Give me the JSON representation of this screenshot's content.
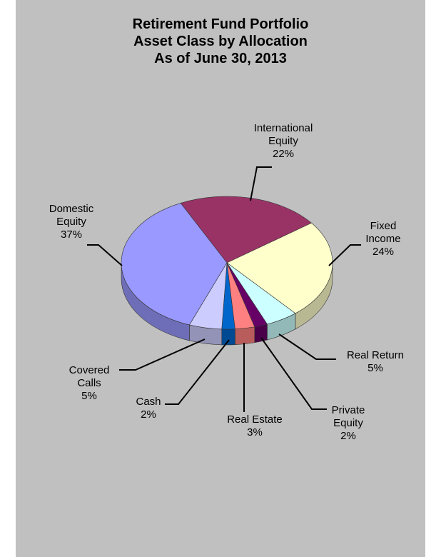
{
  "chart_data": {
    "type": "pie",
    "title_lines": [
      "Retirement Fund  Portfolio",
      "Asset Class by Allocation",
      "As of June 30, 2013"
    ],
    "categories": [
      "International Equity",
      "Fixed Income",
      "Real Return",
      "Private Equity",
      "Real Estate",
      "Cash",
      "Covered Calls",
      "Domestic Equity"
    ],
    "values": [
      22,
      24,
      5,
      2,
      3,
      2,
      5,
      37
    ],
    "value_labels": [
      "22%",
      "24%",
      "5%",
      "2%",
      "3%",
      "2%",
      "5%",
      "37%"
    ],
    "label_lines": [
      [
        "International",
        "Equity",
        "22%"
      ],
      [
        "Fixed",
        "Income",
        "24%"
      ],
      [
        "Real Return",
        "5%"
      ],
      [
        "Private",
        "Equity",
        "2%"
      ],
      [
        "Real Estate",
        "3%"
      ],
      [
        "Cash",
        "2%"
      ],
      [
        "Covered",
        "Calls",
        "5%"
      ],
      [
        "Domestic",
        "Equity",
        "37%"
      ]
    ],
    "colors": [
      "#993366",
      "#ffffcc",
      "#ccffff",
      "#660066",
      "#ff8080",
      "#0066cc",
      "#ccccff",
      "#9999ff"
    ],
    "style": "3d-pie",
    "legend": "none",
    "background": "#c0c0c0"
  }
}
